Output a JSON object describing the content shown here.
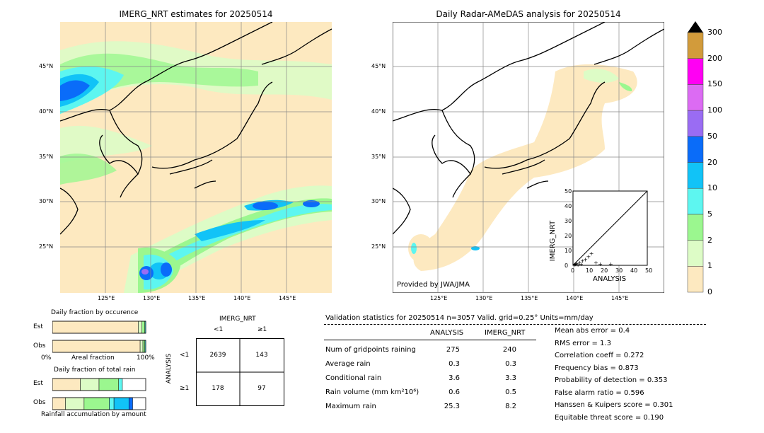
{
  "left_map": {
    "title": "IMERG_NRT estimates for 20250514",
    "lat_labels": [
      "45°N",
      "40°N",
      "35°N",
      "30°N",
      "25°N"
    ],
    "lon_labels": [
      "125°E",
      "130°E",
      "135°E",
      "140°E",
      "145°E"
    ]
  },
  "right_map": {
    "title": "Daily Radar-AMeDAS analysis for 20250514",
    "lat_labels": [
      "45°N",
      "40°N",
      "35°N",
      "30°N",
      "25°N"
    ],
    "lon_labels": [
      "125°E",
      "130°E",
      "135°E",
      "140°E",
      "145°E"
    ],
    "credit": "Provided by JWA/JMA"
  },
  "colorbar": {
    "levels": [
      "0",
      "1",
      "2",
      "5",
      "10",
      "20",
      "50",
      "100",
      "150",
      "200",
      "300"
    ],
    "colors": [
      "#fde9c0",
      "#ddfcc6",
      "#9bf78f",
      "#5df6f0",
      "#11c3f7",
      "#0a6cf9",
      "#9a6cf3",
      "#dc6bf3",
      "#ff00f3",
      "#d29b3b"
    ],
    "overflow_color": "#000000"
  },
  "fraction_occurrence": {
    "title": "Daily fraction by occurence",
    "rows": [
      "Est",
      "Obs"
    ],
    "xlabel_left": "0%",
    "xlabel_mid": "Areal fraction",
    "xlabel_right": "100%"
  },
  "fraction_total": {
    "title": "Daily fraction of total rain",
    "rows": [
      "Est",
      "Obs"
    ],
    "xlabel": "Rainfall accumulation by amount"
  },
  "contingency": {
    "title": "IMERG_NRT",
    "col_labels": [
      "<1",
      "≥1"
    ],
    "row_axis": "ANALYSIS",
    "row_labels": [
      "<1",
      "≥1"
    ],
    "cells": [
      [
        "2639",
        "143"
      ],
      [
        "178",
        "97"
      ]
    ]
  },
  "scatter": {
    "xlabel": "ANALYSIS",
    "ylabel": "IMERG_NRT",
    "ticks": [
      "0",
      "10",
      "20",
      "30",
      "40",
      "50"
    ]
  },
  "stats": {
    "header": "Validation statistics for 20250514  n=3057 Valid. grid=0.25° Units=mm/day",
    "col_analysis": "ANALYSIS",
    "col_imerg": "IMERG_NRT",
    "rows": [
      {
        "label": "Num of gridpoints raining",
        "analysis": "275",
        "imerg": "240"
      },
      {
        "label": "Average rain",
        "analysis": "0.3",
        "imerg": "0.3"
      },
      {
        "label": "Conditional rain",
        "analysis": "3.6",
        "imerg": "3.3"
      },
      {
        "label": "Rain volume (mm km²10⁶)",
        "analysis": "0.6",
        "imerg": "0.5"
      },
      {
        "label": "Maximum rain",
        "analysis": "25.3",
        "imerg": "8.2"
      }
    ],
    "scores": [
      "Mean abs error =    0.4",
      "RMS error =    1.3",
      "Correlation coeff =  0.272",
      "Frequency bias =  0.873",
      "Probability of detection =  0.353",
      "False alarm ratio =  0.596",
      "Hanssen & Kuipers score =  0.301",
      "Equitable threat score =  0.190"
    ]
  },
  "chart_data": [
    {
      "type": "heatmap",
      "title": "IMERG_NRT estimates for 20250514",
      "xlim": [
        120,
        150
      ],
      "ylim": [
        20,
        50
      ],
      "x_ticks": [
        "125°E",
        "130°E",
        "135°E",
        "140°E",
        "145°E"
      ],
      "y_ticks": [
        "45°N",
        "40°N",
        "35°N",
        "30°N",
        "25°N"
      ]
    },
    {
      "type": "heatmap",
      "title": "Daily Radar-AMeDAS analysis for 20250514",
      "xlim": [
        120,
        150
      ],
      "ylim": [
        20,
        50
      ],
      "x_ticks": [
        "125°E",
        "130°E",
        "135°E",
        "140°E",
        "145°E"
      ],
      "y_ticks": [
        "45°N",
        "40°N",
        "35°N",
        "30°N",
        "25°N"
      ]
    },
    {
      "type": "scatter",
      "xlabel": "ANALYSIS",
      "ylabel": "IMERG_NRT",
      "xlim": [
        0,
        50
      ],
      "ylim": [
        0,
        50
      ],
      "x": [
        0.5,
        1,
        1.5,
        2,
        3,
        4,
        5,
        6,
        8,
        10,
        12,
        15,
        18,
        25
      ],
      "y": [
        0.5,
        1,
        0.8,
        1.5,
        0.5,
        2,
        1,
        3,
        4,
        6,
        8,
        2,
        1,
        1
      ]
    },
    {
      "type": "bar",
      "title": "Daily fraction by occurence",
      "categories": [
        "Est",
        "Obs"
      ],
      "series": [
        {
          "values": [
            0.92,
            0.94
          ]
        },
        {
          "values": [
            0.04,
            0.03
          ]
        },
        {
          "values": [
            0.03,
            0.02
          ]
        },
        {
          "values": [
            0.01,
            0.01
          ]
        }
      ]
    },
    {
      "type": "bar",
      "title": "Daily fraction of total rain",
      "categories": [
        "Est",
        "Obs"
      ],
      "series": [
        {
          "values": [
            0.3,
            0.14
          ]
        },
        {
          "values": [
            0.2,
            0.2
          ]
        },
        {
          "values": [
            0.21,
            0.27
          ]
        },
        {
          "values": [
            0.04,
            0.05
          ]
        },
        {
          "values": [
            0.0,
            0.16
          ]
        },
        {
          "values": [
            0.0,
            0.04
          ]
        }
      ]
    }
  ]
}
